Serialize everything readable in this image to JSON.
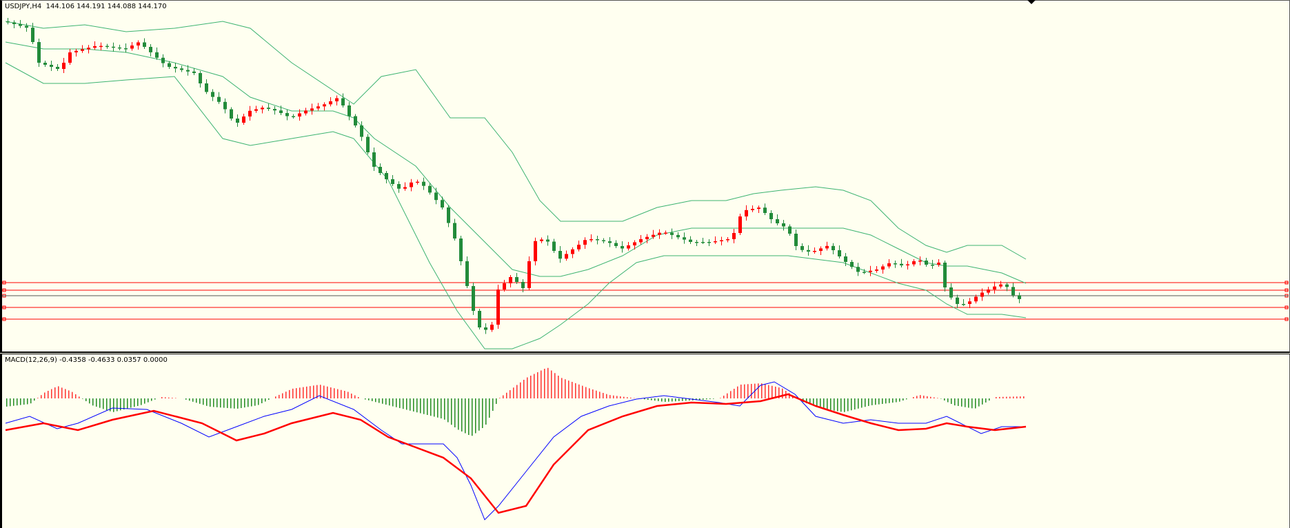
{
  "price_pane": {
    "caption": "USDJPY,H4  144.106 144.191 144.088 144.170",
    "symbol": "USDJPY",
    "timeframe": "H4",
    "ohlc": {
      "open": 144.106,
      "high": 144.191,
      "low": 144.088,
      "close": 144.17
    },
    "indicator": "Bollinger Bands"
  },
  "macd_pane": {
    "caption": "MACD(12,26,9) -0.4358 -0.4633 0.0357 0.0000",
    "params": "12,26,9"
  },
  "colors": {
    "background": "#fffff0",
    "bull": "#ff0000",
    "bear": "#228b3a",
    "bands": "#3cb371",
    "hlines": "#ff0000",
    "macd_line": "#0000ff",
    "signal_line": "#ff0000",
    "hist_pos": "#ff3030",
    "hist_neg": "#228b22",
    "grid": "#000000"
  },
  "icons": [
    "chart-shift-marker-icon"
  ]
}
